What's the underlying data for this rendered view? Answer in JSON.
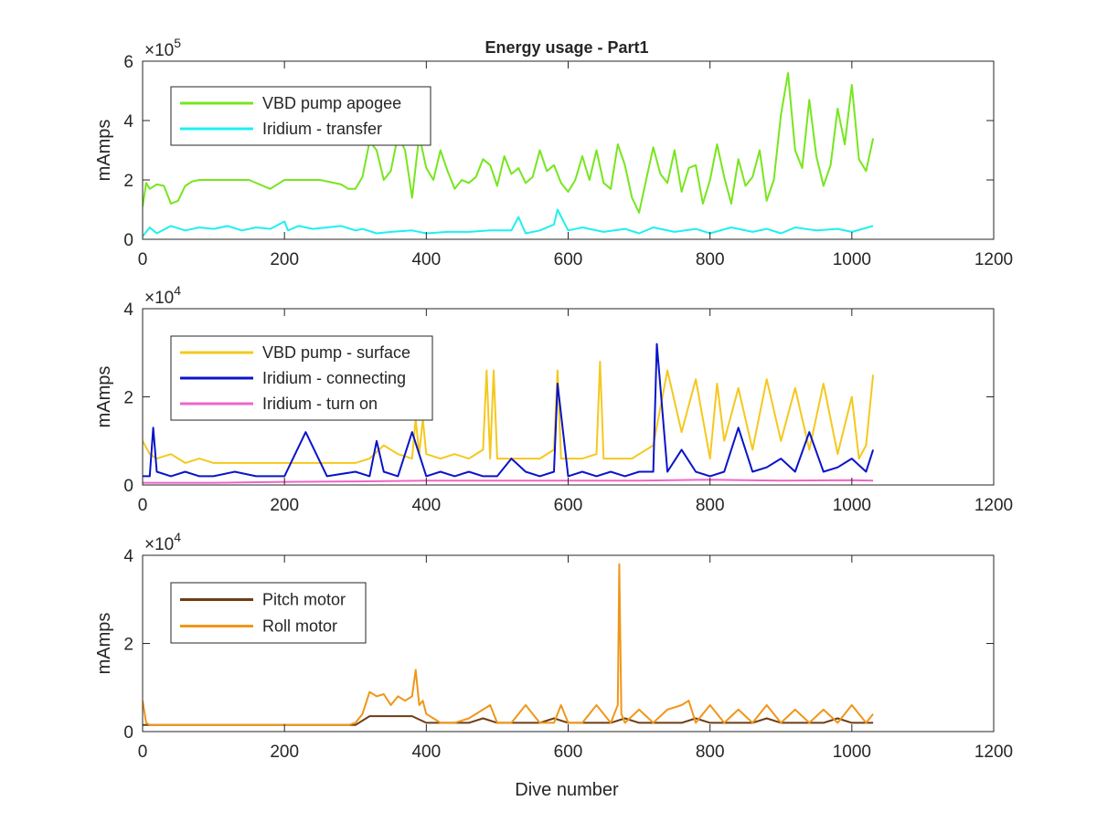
{
  "figure": {
    "title": "Energy usage - Part1",
    "xlabel": "Dive number"
  },
  "chart_data": [
    {
      "type": "line",
      "title": "Energy usage - Part1",
      "xlabel": "",
      "ylabel": "mAmps",
      "xlim": [
        0,
        1200
      ],
      "ylim": [
        0,
        600000
      ],
      "xticks": [
        0,
        200,
        400,
        600,
        800,
        1000,
        1200
      ],
      "yticks": [
        0,
        2,
        4,
        6
      ],
      "exponent_label": "×10",
      "exponent_power": "5",
      "grid": false,
      "legend": "top-left",
      "series": [
        {
          "name": "VBD pump apogee",
          "color": "#77e61e",
          "x": [
            0,
            5,
            10,
            20,
            30,
            40,
            50,
            60,
            70,
            80,
            100,
            150,
            180,
            200,
            250,
            280,
            290,
            300,
            310,
            320,
            330,
            340,
            350,
            360,
            370,
            380,
            390,
            400,
            410,
            420,
            430,
            440,
            450,
            460,
            470,
            480,
            490,
            500,
            510,
            520,
            530,
            540,
            550,
            560,
            570,
            580,
            590,
            600,
            610,
            620,
            630,
            640,
            650,
            660,
            670,
            680,
            690,
            700,
            710,
            720,
            730,
            740,
            750,
            760,
            770,
            780,
            790,
            800,
            810,
            820,
            830,
            840,
            850,
            860,
            870,
            880,
            890,
            900,
            910,
            920,
            930,
            940,
            950,
            960,
            970,
            980,
            990,
            1000,
            1010,
            1020,
            1030
          ],
          "values": [
            110000,
            190000,
            170000,
            185000,
            180000,
            120000,
            130000,
            180000,
            195000,
            200000,
            200000,
            200000,
            170000,
            200000,
            200000,
            185000,
            170000,
            170000,
            210000,
            330000,
            300000,
            200000,
            230000,
            350000,
            300000,
            140000,
            350000,
            240000,
            200000,
            300000,
            230000,
            170000,
            200000,
            190000,
            210000,
            270000,
            250000,
            180000,
            280000,
            220000,
            240000,
            190000,
            210000,
            300000,
            230000,
            250000,
            190000,
            160000,
            200000,
            280000,
            200000,
            300000,
            190000,
            170000,
            320000,
            250000,
            140000,
            90000,
            200000,
            310000,
            220000,
            190000,
            300000,
            160000,
            240000,
            250000,
            120000,
            200000,
            320000,
            210000,
            120000,
            270000,
            180000,
            210000,
            300000,
            130000,
            200000,
            420000,
            560000,
            300000,
            240000,
            470000,
            280000,
            180000,
            250000,
            440000,
            320000,
            520000,
            270000,
            230000,
            340000
          ]
        },
        {
          "name": "Iridium - transfer",
          "color": "#1ef0f0",
          "x": [
            0,
            10,
            20,
            40,
            60,
            80,
            100,
            120,
            140,
            160,
            180,
            200,
            205,
            220,
            240,
            260,
            280,
            300,
            310,
            330,
            350,
            380,
            400,
            430,
            460,
            490,
            520,
            530,
            540,
            560,
            580,
            585,
            600,
            620,
            650,
            680,
            700,
            720,
            750,
            780,
            800,
            830,
            860,
            880,
            900,
            920,
            950,
            980,
            1000,
            1030
          ],
          "values": [
            10000,
            40000,
            20000,
            45000,
            30000,
            40000,
            35000,
            45000,
            30000,
            40000,
            35000,
            60000,
            30000,
            45000,
            35000,
            40000,
            45000,
            30000,
            35000,
            20000,
            25000,
            30000,
            20000,
            25000,
            25000,
            30000,
            30000,
            75000,
            20000,
            30000,
            50000,
            100000,
            30000,
            40000,
            25000,
            35000,
            20000,
            40000,
            25000,
            35000,
            20000,
            40000,
            25000,
            35000,
            20000,
            40000,
            30000,
            35000,
            25000,
            45000
          ]
        }
      ]
    },
    {
      "type": "line",
      "title": "",
      "xlabel": "",
      "ylabel": "mAmps",
      "xlim": [
        0,
        1200
      ],
      "ylim": [
        0,
        40000
      ],
      "xticks": [
        0,
        200,
        400,
        600,
        800,
        1000,
        1200
      ],
      "yticks": [
        0,
        2,
        4
      ],
      "exponent_label": "×10",
      "exponent_power": "4",
      "grid": false,
      "legend": "top-left",
      "series": [
        {
          "name": "VBD pump - surface",
          "color": "#f5c81e",
          "x": [
            0,
            10,
            20,
            40,
            60,
            80,
            100,
            150,
            200,
            250,
            300,
            320,
            340,
            360,
            380,
            385,
            390,
            395,
            400,
            420,
            440,
            460,
            480,
            485,
            490,
            495,
            500,
            520,
            540,
            560,
            580,
            585,
            590,
            600,
            620,
            640,
            645,
            650,
            670,
            690,
            700,
            720,
            740,
            760,
            780,
            800,
            810,
            820,
            840,
            860,
            880,
            900,
            920,
            940,
            960,
            980,
            1000,
            1010,
            1020,
            1030
          ],
          "values": [
            10000,
            7000,
            6000,
            7000,
            5000,
            6000,
            5000,
            5000,
            5000,
            5000,
            5000,
            6000,
            9000,
            7000,
            6000,
            15000,
            7000,
            15000,
            7000,
            6000,
            7000,
            6000,
            8000,
            26000,
            6000,
            26000,
            6000,
            6000,
            6000,
            6000,
            8000,
            26000,
            6000,
            6000,
            6000,
            7000,
            28000,
            6000,
            6000,
            6000,
            7000,
            9000,
            26000,
            12000,
            24000,
            6000,
            23000,
            10000,
            22000,
            8000,
            24000,
            10000,
            22000,
            8000,
            23000,
            7000,
            20000,
            6000,
            9000,
            25000
          ]
        },
        {
          "name": "Iridium - connecting",
          "color": "#0a14c8",
          "x": [
            0,
            10,
            15,
            20,
            40,
            60,
            80,
            100,
            130,
            160,
            200,
            230,
            260,
            300,
            320,
            330,
            340,
            360,
            380,
            400,
            420,
            440,
            460,
            480,
            500,
            520,
            540,
            560,
            580,
            585,
            600,
            620,
            640,
            660,
            680,
            700,
            720,
            725,
            740,
            760,
            780,
            800,
            820,
            840,
            860,
            880,
            900,
            920,
            940,
            960,
            980,
            1000,
            1020,
            1030
          ],
          "values": [
            2000,
            2000,
            13000,
            3000,
            2000,
            3000,
            2000,
            2000,
            3000,
            2000,
            2000,
            12000,
            2000,
            3000,
            2000,
            10000,
            3000,
            2000,
            12000,
            2000,
            3000,
            2000,
            3000,
            2000,
            2000,
            6000,
            3000,
            2000,
            3000,
            23000,
            2000,
            3000,
            2000,
            3000,
            2000,
            3000,
            3000,
            32000,
            3000,
            8000,
            3000,
            2000,
            3000,
            13000,
            3000,
            4000,
            6000,
            3000,
            12000,
            3000,
            4000,
            6000,
            3000,
            8000
          ]
        },
        {
          "name": "Iridium - turn on",
          "color": "#f064c8",
          "x": [
            0,
            100,
            200,
            300,
            400,
            500,
            600,
            700,
            800,
            900,
            1000,
            1030
          ],
          "values": [
            500,
            500,
            700,
            800,
            1000,
            1000,
            1000,
            1000,
            1200,
            1000,
            1100,
            1000
          ]
        }
      ]
    },
    {
      "type": "line",
      "title": "",
      "xlabel": "Dive number",
      "ylabel": "mAmps",
      "xlim": [
        0,
        1200
      ],
      "ylim": [
        0,
        40000
      ],
      "xticks": [
        0,
        200,
        400,
        600,
        800,
        1000,
        1200
      ],
      "yticks": [
        0,
        2,
        4
      ],
      "exponent_label": "×10",
      "exponent_power": "4",
      "grid": false,
      "legend": "top-left",
      "series": [
        {
          "name": "Pitch motor",
          "color": "#6e3c14",
          "x": [
            0,
            50,
            100,
            150,
            200,
            250,
            300,
            320,
            340,
            360,
            380,
            400,
            420,
            440,
            460,
            480,
            500,
            520,
            540,
            560,
            580,
            600,
            620,
            640,
            660,
            680,
            700,
            720,
            740,
            760,
            780,
            800,
            820,
            840,
            860,
            880,
            900,
            920,
            940,
            960,
            980,
            1000,
            1020,
            1030
          ],
          "values": [
            1500,
            1500,
            1500,
            1500,
            1500,
            1500,
            1500,
            3500,
            3500,
            3500,
            3500,
            2000,
            2000,
            2000,
            2000,
            3000,
            2000,
            2000,
            2000,
            2000,
            3000,
            2000,
            2000,
            2000,
            2000,
            3000,
            2000,
            2000,
            2000,
            2000,
            3000,
            2000,
            2000,
            2000,
            2000,
            3000,
            2000,
            2000,
            2000,
            2000,
            3000,
            2000,
            2000,
            2000
          ]
        },
        {
          "name": "Roll motor",
          "color": "#f09619",
          "x": [
            0,
            5,
            10,
            50,
            100,
            150,
            200,
            250,
            280,
            290,
            300,
            310,
            320,
            330,
            340,
            350,
            360,
            370,
            380,
            385,
            390,
            395,
            400,
            410,
            420,
            440,
            460,
            480,
            490,
            500,
            520,
            540,
            560,
            580,
            590,
            600,
            620,
            640,
            660,
            670,
            672,
            675,
            680,
            700,
            720,
            740,
            760,
            770,
            780,
            800,
            820,
            840,
            860,
            880,
            900,
            920,
            940,
            960,
            980,
            1000,
            1020,
            1030
          ],
          "values": [
            7000,
            2000,
            1500,
            1500,
            1500,
            1500,
            1500,
            1500,
            1500,
            1500,
            2000,
            4000,
            9000,
            8000,
            8500,
            6000,
            8000,
            7000,
            8000,
            14000,
            6000,
            7000,
            4000,
            3000,
            2000,
            2000,
            3000,
            5000,
            6000,
            2000,
            2000,
            6000,
            2000,
            2000,
            6000,
            2000,
            2000,
            6000,
            2000,
            6000,
            38000,
            4000,
            2000,
            5000,
            2000,
            5000,
            6000,
            7000,
            2000,
            6000,
            2000,
            5000,
            2000,
            6000,
            2000,
            5000,
            2000,
            5000,
            2000,
            6000,
            2000,
            4000
          ]
        }
      ]
    }
  ]
}
